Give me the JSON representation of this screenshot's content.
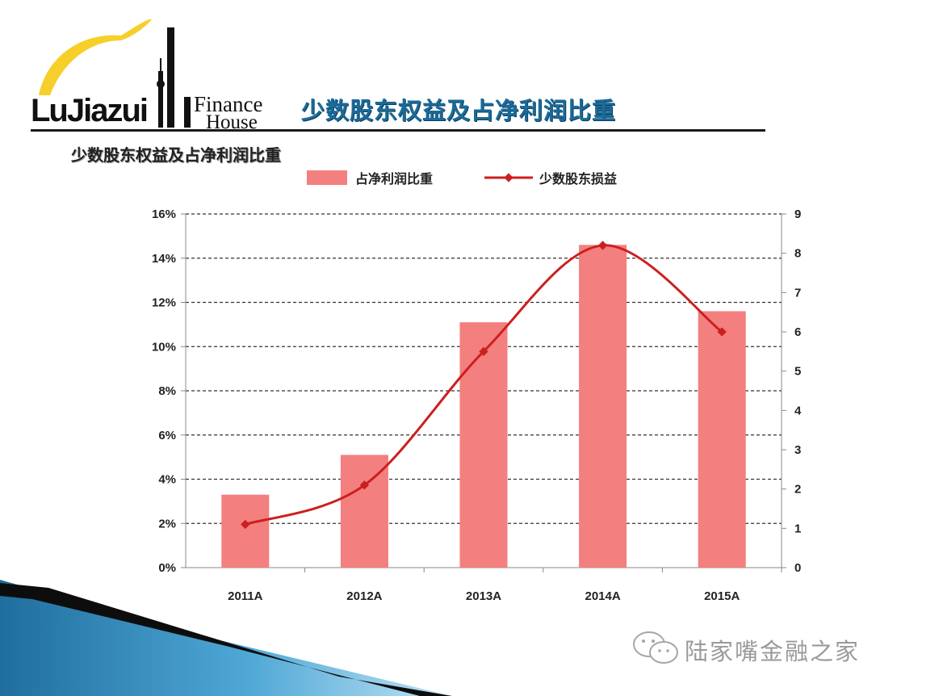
{
  "logo": {
    "mark_text": "LuJiazui",
    "word_top": "Finance",
    "word_bottom": "House"
  },
  "header": {
    "title": "少数股东权益及占净利润比重"
  },
  "watermark": {
    "text": "陆家嘴金融之家",
    "icon": "wechat-icon"
  },
  "chart_data": {
    "type": "bar",
    "title": "少数股东权益及占净利润比重",
    "categories": [
      "2011A",
      "2012A",
      "2013A",
      "2014A",
      "2015A"
    ],
    "series": [
      {
        "name": "占净利润比重",
        "type": "bar",
        "axis": "left",
        "values": [
          3.3,
          5.1,
          11.1,
          14.6,
          11.6
        ],
        "color": "#f47f7f"
      },
      {
        "name": "少数股东损益",
        "type": "line",
        "axis": "right",
        "values": [
          1.1,
          2.1,
          5.5,
          8.2,
          6.0
        ],
        "color": "#cc1f1f"
      }
    ],
    "left_axis": {
      "min": 0,
      "max": 16,
      "step": 2,
      "format": "percent",
      "ticks": [
        "0%",
        "2%",
        "4%",
        "6%",
        "8%",
        "10%",
        "12%",
        "14%",
        "16%"
      ]
    },
    "right_axis": {
      "min": 0,
      "max": 9,
      "step": 1,
      "ticks": [
        "0",
        "1",
        "2",
        "3",
        "4",
        "5",
        "6",
        "7",
        "8",
        "9"
      ]
    },
    "grid": true,
    "legend_position": "top"
  }
}
